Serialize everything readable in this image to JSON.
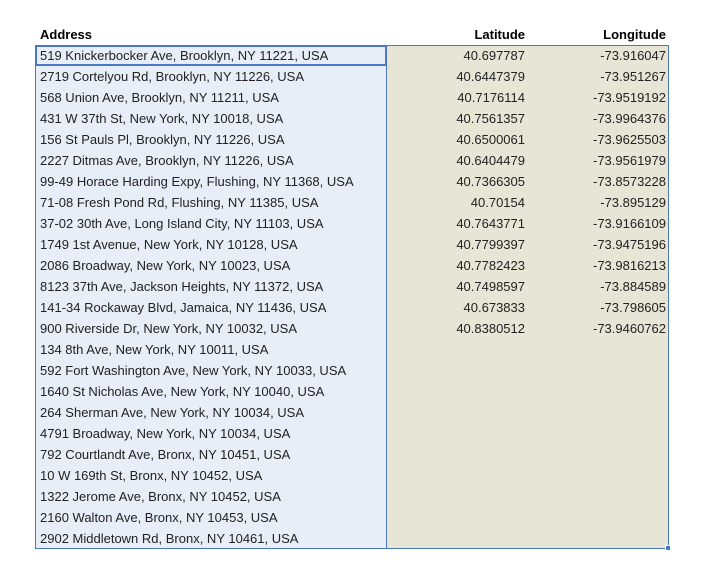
{
  "headers": {
    "address": "Address",
    "latitude": "Latitude",
    "longitude": "Longitude"
  },
  "rows": [
    {
      "address": "519 Knickerbocker Ave, Brooklyn, NY 11221, USA",
      "latitude": "40.697787",
      "longitude": "-73.916047"
    },
    {
      "address": "2719 Cortelyou Rd, Brooklyn, NY 11226, USA",
      "latitude": "40.6447379",
      "longitude": "-73.951267"
    },
    {
      "address": "568 Union Ave, Brooklyn, NY 11211, USA",
      "latitude": "40.7176114",
      "longitude": "-73.9519192"
    },
    {
      "address": "431 W 37th St, New York, NY 10018, USA",
      "latitude": "40.7561357",
      "longitude": "-73.9964376"
    },
    {
      "address": "156 St Pauls Pl, Brooklyn, NY 11226, USA",
      "latitude": "40.6500061",
      "longitude": "-73.9625503"
    },
    {
      "address": "2227 Ditmas Ave, Brooklyn, NY 11226, USA",
      "latitude": "40.6404479",
      "longitude": "-73.9561979"
    },
    {
      "address": "99-49 Horace Harding Expy, Flushing, NY 11368, USA",
      "latitude": "40.7366305",
      "longitude": "-73.8573228"
    },
    {
      "address": "71-08 Fresh Pond Rd, Flushing, NY 11385, USA",
      "latitude": "40.70154",
      "longitude": "-73.895129"
    },
    {
      "address": "37-02 30th Ave, Long Island City, NY 11103, USA",
      "latitude": "40.7643771",
      "longitude": "-73.9166109"
    },
    {
      "address": "1749 1st Avenue, New York, NY 10128, USA",
      "latitude": "40.7799397",
      "longitude": "-73.9475196"
    },
    {
      "address": "2086 Broadway, New York, NY 10023, USA",
      "latitude": "40.7782423",
      "longitude": "-73.9816213"
    },
    {
      "address": "8123 37th Ave, Jackson Heights, NY 11372, USA",
      "latitude": "40.7498597",
      "longitude": "-73.884589"
    },
    {
      "address": "141-34 Rockaway Blvd, Jamaica, NY 11436, USA",
      "latitude": "40.673833",
      "longitude": "-73.798605"
    },
    {
      "address": "900 Riverside Dr, New York, NY 10032, USA",
      "latitude": "40.8380512",
      "longitude": "-73.9460762"
    },
    {
      "address": "134 8th Ave, New York, NY 10011, USA",
      "latitude": "",
      "longitude": ""
    },
    {
      "address": "592 Fort Washington Ave, New York, NY 10033, USA",
      "latitude": "",
      "longitude": ""
    },
    {
      "address": "1640 St Nicholas Ave, New York, NY 10040, USA",
      "latitude": "",
      "longitude": ""
    },
    {
      "address": "264 Sherman Ave, New York, NY 10034, USA",
      "latitude": "",
      "longitude": ""
    },
    {
      "address": "4791 Broadway, New York, NY 10034, USA",
      "latitude": "",
      "longitude": ""
    },
    {
      "address": "792 Courtlandt Ave, Bronx, NY 10451, USA",
      "latitude": "",
      "longitude": ""
    },
    {
      "address": "10 W 169th St, Bronx, NY 10452, USA",
      "latitude": "",
      "longitude": ""
    },
    {
      "address": "1322 Jerome Ave, Bronx, NY 10452, USA",
      "latitude": "",
      "longitude": ""
    },
    {
      "address": "2160 Walton Ave, Bronx, NY 10453, USA",
      "latitude": "",
      "longitude": ""
    },
    {
      "address": "2902 Middletown Rd, Bronx, NY 10461, USA",
      "latitude": "",
      "longitude": ""
    }
  ]
}
